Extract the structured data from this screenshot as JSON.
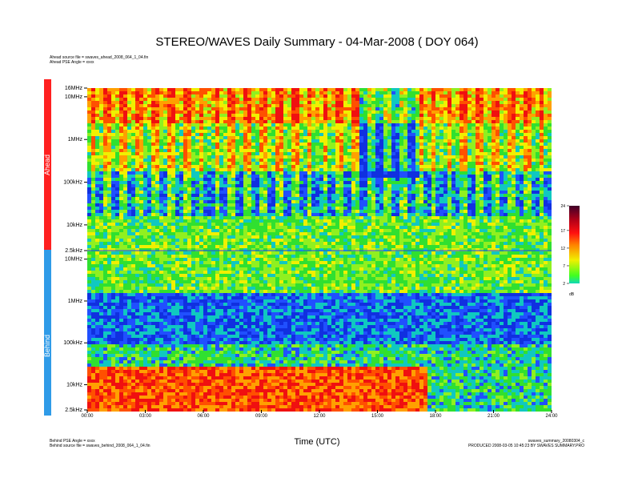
{
  "header": {
    "title": "STEREO/WAVES Daily Summary - 04-Mar-2008 ( DOY 064)",
    "ahead_source": "Ahead source file = swaves_ahead_2008_064_1_04.fin",
    "ahead_pse": "Ahead PSE Angle = xxxx"
  },
  "footer": {
    "behind_pse": "Behind PSE Angle = xxxx",
    "behind_source": "Behind source file = swaves_behind_2008_064_1_04.fin",
    "summary_file": "swaves_summary_20080304_c",
    "produced": "PRODUCED 2008-03-05 10:45:23 BY SWAVES SUMMARY.PRO"
  },
  "colors": {
    "ahead_bar": "#ff2020",
    "behind_bar": "#2f9be8"
  },
  "chart_data": {
    "type": "heatmap",
    "title": "STEREO/WAVES Daily Summary - 04-Mar-2008 ( DOY 064)",
    "xlabel": "Time (UTC)",
    "x_ticks": [
      "00:00",
      "03:00",
      "06:00",
      "09:00",
      "12:00",
      "15:00",
      "18:00",
      "21:00",
      "24:00"
    ],
    "xlim_hours": [
      0,
      24
    ],
    "panels": [
      {
        "name": "Ahead",
        "frequency_axis": "log",
        "frequency_range": [
          "2.5kHz",
          "16MHz"
        ],
        "y_ticks": [
          "2.5kHz",
          "10kHz",
          "100kHz",
          "1MHz",
          "10MHz",
          "16MHz"
        ]
      },
      {
        "name": "Behind",
        "frequency_axis": "log",
        "frequency_range": [
          "16MHz",
          "2.5kHz"
        ],
        "y_ticks": [
          "10MHz",
          "1MHz",
          "100kHz",
          "10kHz",
          "2.5kHz"
        ]
      }
    ],
    "colorbar": {
      "unit": "dB",
      "ticks": [
        24,
        17,
        12,
        7,
        2
      ],
      "range": [
        2,
        24
      ]
    },
    "legend_placement": "right",
    "grid": false
  }
}
